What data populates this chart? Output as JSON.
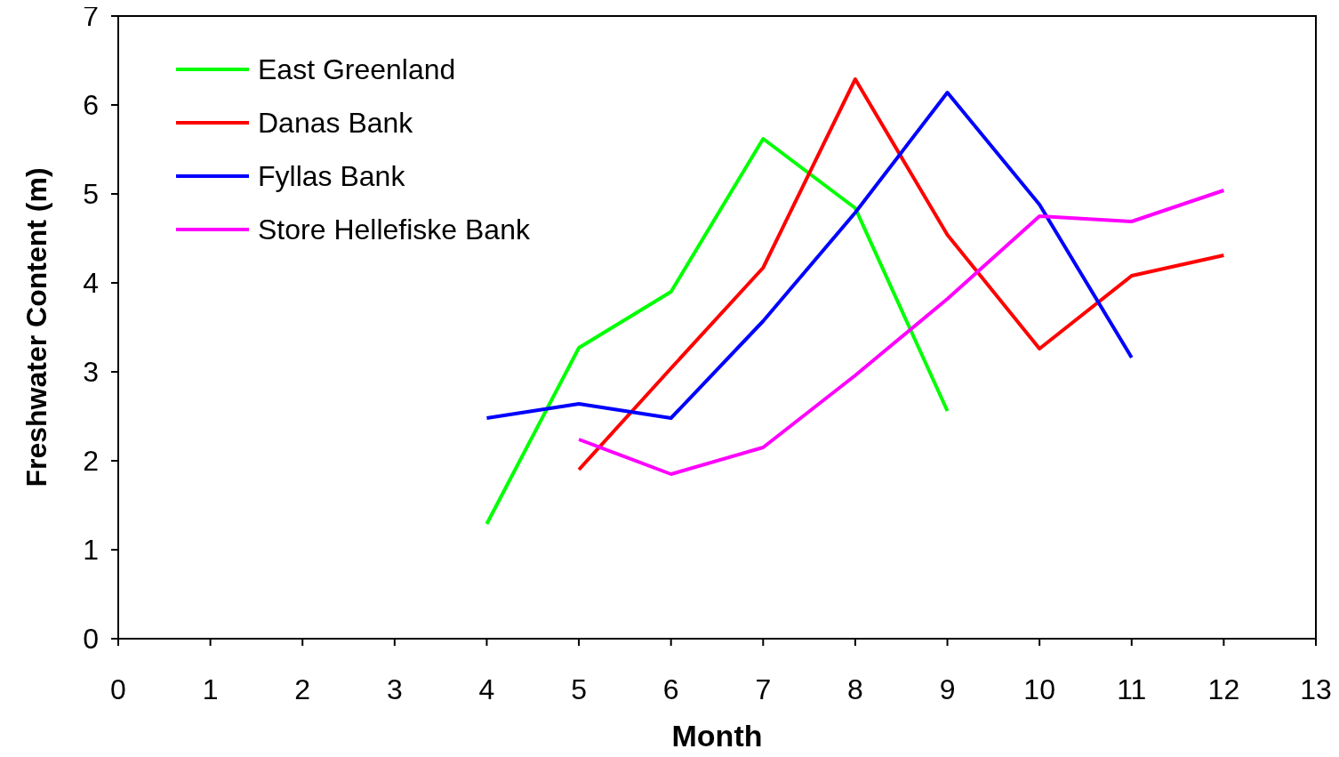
{
  "chart_data": {
    "type": "line",
    "xlabel": "Month",
    "ylabel": "Freshwater Content (m)",
    "xlim": [
      0,
      13
    ],
    "xticks": [
      0,
      1,
      2,
      3,
      4,
      5,
      6,
      7,
      8,
      9,
      10,
      11,
      12,
      13
    ],
    "ylim": [
      0,
      7
    ],
    "yticks": [
      0,
      1,
      2,
      3,
      4,
      5,
      6,
      7
    ],
    "grid": false,
    "legend": "top left",
    "marker": "none",
    "line_style": "solid",
    "series": [
      {
        "name": "East Greenland",
        "color": "#00ff00",
        "x": [
          4,
          5,
          6,
          7,
          8,
          9
        ],
        "values": [
          1.29,
          3.27,
          3.9,
          5.62,
          4.84,
          2.56
        ]
      },
      {
        "name": "Danas Bank",
        "color": "#ff0000",
        "x": [
          5,
          6,
          7,
          8,
          9,
          10,
          11,
          12
        ],
        "values": [
          1.9,
          3.04,
          4.17,
          6.29,
          4.54,
          3.26,
          4.08,
          4.31
        ]
      },
      {
        "name": "Fyllas Bank",
        "color": "#0000ff",
        "x": [
          4,
          5,
          6,
          7,
          8,
          9,
          10,
          11
        ],
        "values": [
          2.48,
          2.64,
          2.48,
          3.57,
          4.79,
          6.14,
          4.88,
          3.16
        ]
      },
      {
        "name": "Store Hellefiske Bank",
        "color": "#ff00ff",
        "x": [
          5,
          6,
          7,
          8,
          9,
          10,
          11,
          12
        ],
        "values": [
          2.24,
          1.85,
          2.15,
          2.96,
          3.82,
          4.75,
          4.69,
          5.04
        ]
      }
    ]
  }
}
